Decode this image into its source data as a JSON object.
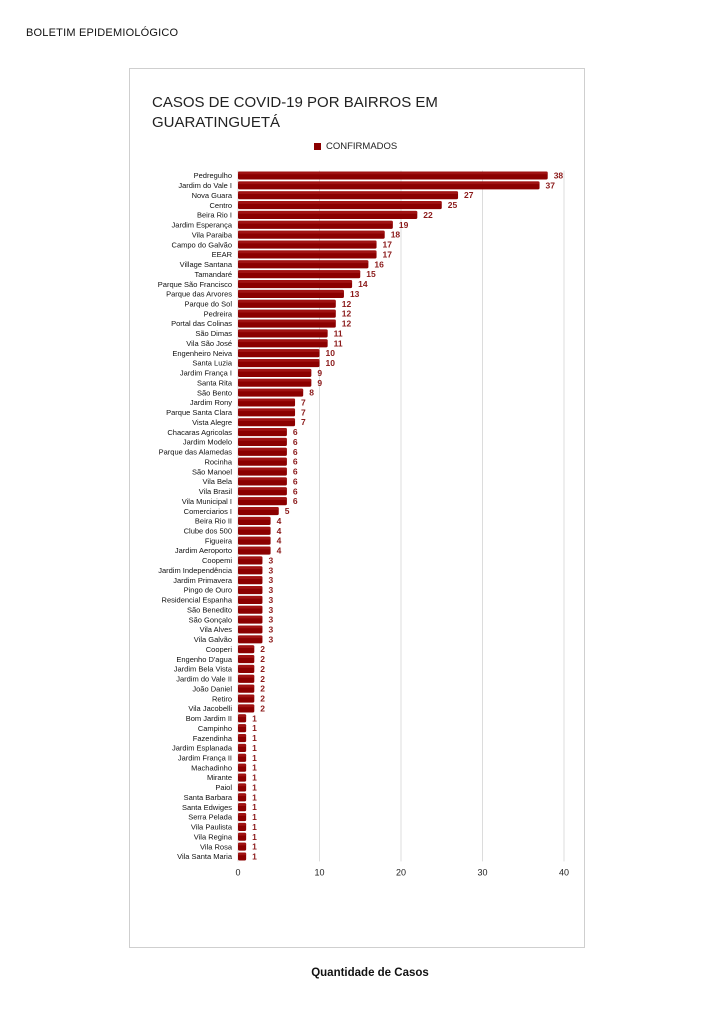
{
  "document": {
    "header": "BOLETIM EPIDEMIOLÓGICO"
  },
  "colors": {
    "bar": "#8b0000",
    "bar_highlight": "#b22222",
    "value_label": "#8b1a1a",
    "grid": "#dcdcdc"
  },
  "chart_data": {
    "type": "bar",
    "orientation": "horizontal",
    "title": "CASOS DE COVID-19 POR BAIRROS EM GUARATINGUETÁ",
    "legend": {
      "placement": "top-center",
      "entries": [
        "CONFIRMADOS"
      ]
    },
    "xlabel": "Quantidade de Casos",
    "ylabel": "",
    "xlim": [
      0,
      40
    ],
    "xticks": [
      0,
      10,
      20,
      30,
      40
    ],
    "grid": true,
    "series": [
      {
        "name": "CONFIRMADOS"
      }
    ],
    "categories": [
      "Pedregulho",
      "Jardim do Vale I",
      "Nova Guara",
      "Centro",
      "Beira Rio I",
      "Jardim Esperança",
      "Vila Paraiba",
      "Campo do Galvão",
      "EEAR",
      "Village Santana",
      "Tamandaré",
      "Parque São Francisco",
      "Parque das Arvores",
      "Parque do Sol",
      "Pedreira",
      "Portal das Colinas",
      "São Dimas",
      "Vila São José",
      "Engenheiro Neiva",
      "Santa Luzia",
      "Jardim França I",
      "Santa Rita",
      "São Bento",
      "Jardim Rony",
      "Parque Santa Clara",
      "Vista Alegre",
      "Chacaras Agricolas",
      "Jardim Modelo",
      "Parque das Alamedas",
      "Rocinha",
      "São Manoel",
      "Vila Bela",
      "Vila Brasil",
      "Vila Municipal I",
      "Comerciarios I",
      "Beira Rio II",
      "Clube dos 500",
      "Figueira",
      "Jardim Aeroporto",
      "Coopemi",
      "Jardim Independência",
      "Jardim Primavera",
      "Pingo de Ouro",
      "Residencial Espanha",
      "São Benedito",
      "São Gonçalo",
      "Vila Alves",
      "Vila Galvão",
      "Cooperi",
      "Engenho D'agua",
      "Jardim Bela Vista",
      "Jardim do Vale II",
      "João Daniel",
      "Retiro",
      "Vila Jacobelli",
      "Bom Jardim II",
      "Campinho",
      "Fazendinha",
      "Jardim Esplanada",
      "Jardim França II",
      "Machadinho",
      "Mirante",
      "Paiol",
      "Santa Barbara",
      "Santa Edwiges",
      "Serra Pelada",
      "Vila Paulista",
      "Vila Regina",
      "Vila Rosa",
      "Vila Santa Maria"
    ],
    "values": [
      38,
      37,
      27,
      25,
      22,
      19,
      18,
      17,
      17,
      16,
      15,
      14,
      13,
      12,
      12,
      12,
      11,
      11,
      10,
      10,
      9,
      9,
      8,
      7,
      7,
      7,
      6,
      6,
      6,
      6,
      6,
      6,
      6,
      6,
      5,
      4,
      4,
      4,
      4,
      3,
      3,
      3,
      3,
      3,
      3,
      3,
      3,
      3,
      2,
      2,
      2,
      2,
      2,
      2,
      2,
      1,
      1,
      1,
      1,
      1,
      1,
      1,
      1,
      1,
      1,
      1,
      1,
      1,
      1,
      1
    ]
  }
}
